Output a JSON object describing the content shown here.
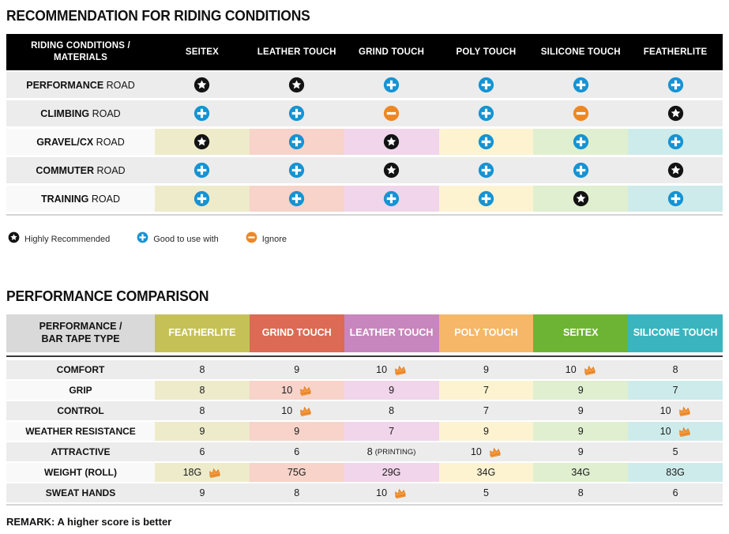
{
  "colors": {
    "page_bg": "#ffffff",
    "header1_bg": "#000000",
    "header1_text": "#ffffff",
    "row_gray": "#ececec",
    "row_label_light": "#f9f9f9",
    "column_tints": [
      "#edebca",
      "#f7d3c9",
      "#f1d5ea",
      "#fdf3d1",
      "#dfefcf",
      "#cdebea"
    ],
    "icon_star": "#131313",
    "icon_plus": "#1593d3",
    "icon_minus": "#ee8722",
    "crown_fill": "#f49a3c",
    "crown_stroke": "#e07a1e",
    "header2_label_bg": "#d9d9d9",
    "divider_dark": "#3a3a3a",
    "divider_light": "#d5d5d5"
  },
  "recommendation_table": {
    "title": "RECOMMENDATION FOR RIDING CONDITIONS",
    "header_label_line1": "RIDING CONDITIONS /",
    "header_label_line2": "MATERIALS",
    "columns": [
      "SEITEX",
      "LEATHER TOUCH",
      "GRIND TOUCH",
      "POLY TOUCH",
      "SILICONE TOUCH",
      "FEATHERLITE"
    ],
    "rows": [
      {
        "label_strong": "PERFORMANCE",
        "label_rest": "ROAD",
        "tinted": false,
        "cells": [
          "star",
          "star",
          "plus",
          "plus",
          "plus",
          "plus"
        ]
      },
      {
        "label_strong": "CLIMBING",
        "label_rest": "ROAD",
        "tinted": false,
        "cells": [
          "plus",
          "plus",
          "minus",
          "plus",
          "minus",
          "star"
        ]
      },
      {
        "label_strong": "GRAVEL/CX",
        "label_rest": "ROAD",
        "tinted": true,
        "cells": [
          "star",
          "plus",
          "star",
          "plus",
          "plus",
          "plus"
        ]
      },
      {
        "label_strong": "COMMUTER",
        "label_rest": "ROAD",
        "tinted": false,
        "cells": [
          "plus",
          "plus",
          "star",
          "plus",
          "plus",
          "star"
        ]
      },
      {
        "label_strong": "TRAINING",
        "label_rest": "ROAD",
        "tinted": true,
        "cells": [
          "plus",
          "plus",
          "plus",
          "plus",
          "star",
          "plus"
        ]
      }
    ],
    "legend": [
      {
        "icon": "star",
        "label": "Highly Recommended"
      },
      {
        "icon": "plus",
        "label": "Good to use with"
      },
      {
        "icon": "minus",
        "label": "Ignore"
      }
    ]
  },
  "performance_table": {
    "title": "PERFORMANCE COMPARISON",
    "header_label_line1": "PERFORMANCE /",
    "header_label_line2": "BAR TAPE TYPE",
    "columns": [
      {
        "name": "FEATHERLITE",
        "color": "#c6c157"
      },
      {
        "name": "GRIND TOUCH",
        "color": "#dc6a55"
      },
      {
        "name": "LEATHER TOUCH",
        "color": "#c786bd"
      },
      {
        "name": "POLY TOUCH",
        "color": "#f6b768"
      },
      {
        "name": "SEITEX",
        "color": "#6eb434"
      },
      {
        "name": "SILICONE TOUCH",
        "color": "#3ab5c0"
      }
    ],
    "rows": [
      {
        "label": "COMFORT",
        "tinted": false,
        "cells": [
          {
            "value": "8"
          },
          {
            "value": "9"
          },
          {
            "value": "10",
            "crown": true
          },
          {
            "value": "9"
          },
          {
            "value": "10",
            "crown": true
          },
          {
            "value": "8"
          }
        ]
      },
      {
        "label": "GRIP",
        "tinted": true,
        "cells": [
          {
            "value": "8"
          },
          {
            "value": "10",
            "crown": true
          },
          {
            "value": "9"
          },
          {
            "value": "7"
          },
          {
            "value": "9"
          },
          {
            "value": "7"
          }
        ]
      },
      {
        "label": "CONTROL",
        "tinted": false,
        "cells": [
          {
            "value": "8"
          },
          {
            "value": "10",
            "crown": true
          },
          {
            "value": "8"
          },
          {
            "value": "7"
          },
          {
            "value": "9"
          },
          {
            "value": "10",
            "crown": true
          }
        ]
      },
      {
        "label": "WEATHER RESISTANCE",
        "tinted": true,
        "cells": [
          {
            "value": "9"
          },
          {
            "value": "9"
          },
          {
            "value": "7"
          },
          {
            "value": "9"
          },
          {
            "value": "9"
          },
          {
            "value": "10",
            "crown": true
          }
        ]
      },
      {
        "label": "ATTRACTIVE",
        "tinted": false,
        "cells": [
          {
            "value": "6"
          },
          {
            "value": "6"
          },
          {
            "value": "8",
            "suffix": "(PRINTING)"
          },
          {
            "value": "10",
            "crown": true
          },
          {
            "value": "9"
          },
          {
            "value": "5"
          }
        ]
      },
      {
        "label": "WEIGHT (ROLL)",
        "tinted": true,
        "cells": [
          {
            "value": "18G",
            "crown": true
          },
          {
            "value": "75G"
          },
          {
            "value": "29G"
          },
          {
            "value": "34G"
          },
          {
            "value": "34G"
          },
          {
            "value": "83G"
          }
        ]
      },
      {
        "label": "SWEAT HANDS",
        "tinted": false,
        "cells": [
          {
            "value": "9"
          },
          {
            "value": "8"
          },
          {
            "value": "10",
            "crown": true
          },
          {
            "value": "5"
          },
          {
            "value": "8"
          },
          {
            "value": "6"
          }
        ]
      }
    ],
    "remark": "REMARK: A higher score is better"
  }
}
